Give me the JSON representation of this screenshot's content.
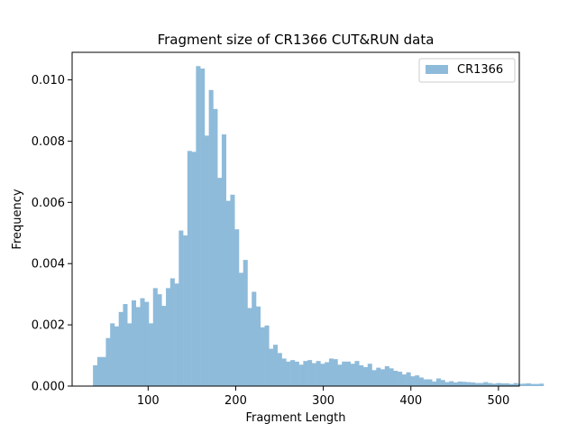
{
  "chart_data": {
    "type": "bar",
    "title": "Fragment size of CR1366 CUT&RUN data",
    "xlabel": "Fragment Length",
    "ylabel": "Frequency",
    "xlim": [
      13.2,
      523.8
    ],
    "ylim": [
      0,
      0.0109
    ],
    "xticks": [
      100,
      200,
      300,
      400,
      500
    ],
    "xtick_labels": [
      "100",
      "200",
      "300",
      "400",
      "500"
    ],
    "yticks": [
      0,
      0.002,
      0.004,
      0.006,
      0.008,
      0.01
    ],
    "ytick_labels": [
      "0.000",
      "0.002",
      "0.004",
      "0.006",
      "0.008",
      "0.010"
    ],
    "legend_position": "top-right",
    "grid": false,
    "bin_start": 37,
    "bin_width": 4.9,
    "series": [
      {
        "name": "CR1366",
        "color": "#8fbbda",
        "values": [
          0.00068,
          0.00095,
          0.00095,
          0.00157,
          0.00205,
          0.00195,
          0.00242,
          0.00268,
          0.00205,
          0.0028,
          0.00258,
          0.00287,
          0.00275,
          0.00205,
          0.0032,
          0.003,
          0.00262,
          0.0032,
          0.00352,
          0.00335,
          0.00508,
          0.00492,
          0.00768,
          0.00765,
          0.01045,
          0.01037,
          0.00818,
          0.00967,
          0.00905,
          0.0068,
          0.00822,
          0.00605,
          0.00625,
          0.00512,
          0.0037,
          0.00412,
          0.00255,
          0.00308,
          0.0026,
          0.00192,
          0.00198,
          0.00122,
          0.00135,
          0.00108,
          0.0009,
          0.0008,
          0.00085,
          0.0008,
          0.0007,
          0.00082,
          0.00085,
          0.00075,
          0.00082,
          0.00073,
          0.00078,
          0.0009,
          0.00088,
          0.0007,
          0.0008,
          0.0008,
          0.00073,
          0.00082,
          0.00068,
          0.00062,
          0.00073,
          0.00052,
          0.0006,
          0.00055,
          0.00065,
          0.00058,
          0.0005,
          0.00047,
          0.00038,
          0.00045,
          0.00032,
          0.00035,
          0.00028,
          0.00022,
          0.00022,
          0.00015,
          0.00025,
          0.0002,
          0.00013,
          0.00016,
          0.00012,
          0.00015,
          0.00014,
          0.00013,
          0.00012,
          0.0001,
          0.0001,
          0.00013,
          0.0001,
          8e-05,
          0.0001,
          9e-05,
          9e-05,
          7e-05,
          0.0001,
          7e-05,
          8e-05,
          9e-05,
          7e-05,
          7e-05,
          8e-05
        ]
      }
    ]
  }
}
